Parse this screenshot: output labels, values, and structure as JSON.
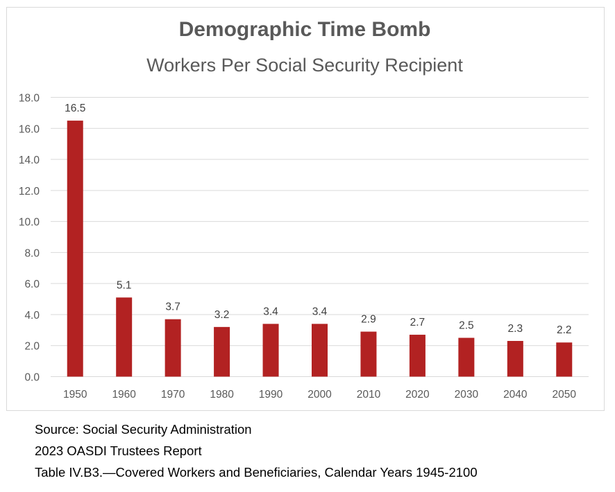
{
  "chart_data": {
    "type": "bar",
    "title": "Demographic Time Bomb",
    "subtitle": "Workers Per Social Security Recipient",
    "categories": [
      "1950",
      "1960",
      "1970",
      "1980",
      "1990",
      "2000",
      "2010",
      "2020",
      "2030",
      "2040",
      "2050"
    ],
    "values": [
      16.5,
      5.1,
      3.7,
      3.2,
      3.4,
      3.4,
      2.9,
      2.7,
      2.5,
      2.3,
      2.2
    ],
    "data_labels": [
      "16.5",
      "5.1",
      "3.7",
      "3.2",
      "3.4",
      "3.4",
      "2.9",
      "2.7",
      "2.5",
      "2.3",
      "2.2"
    ],
    "y_ticks": [
      "0.0",
      "2.0",
      "4.0",
      "6.0",
      "8.0",
      "10.0",
      "12.0",
      "14.0",
      "16.0",
      "18.0"
    ],
    "xlabel": "",
    "ylabel": "",
    "ylim": [
      0,
      18
    ],
    "grid": true,
    "legend": "none",
    "bar_color": "#b22222",
    "grid_color": "#d9d9d9"
  },
  "source": {
    "line1": "Source: Social Security Administration",
    "line2": "2023 OASDI Trustees Report",
    "line3": "Table IV.B3.—Covered Workers and Beneficiaries, Calendar Years 1945-2100"
  }
}
